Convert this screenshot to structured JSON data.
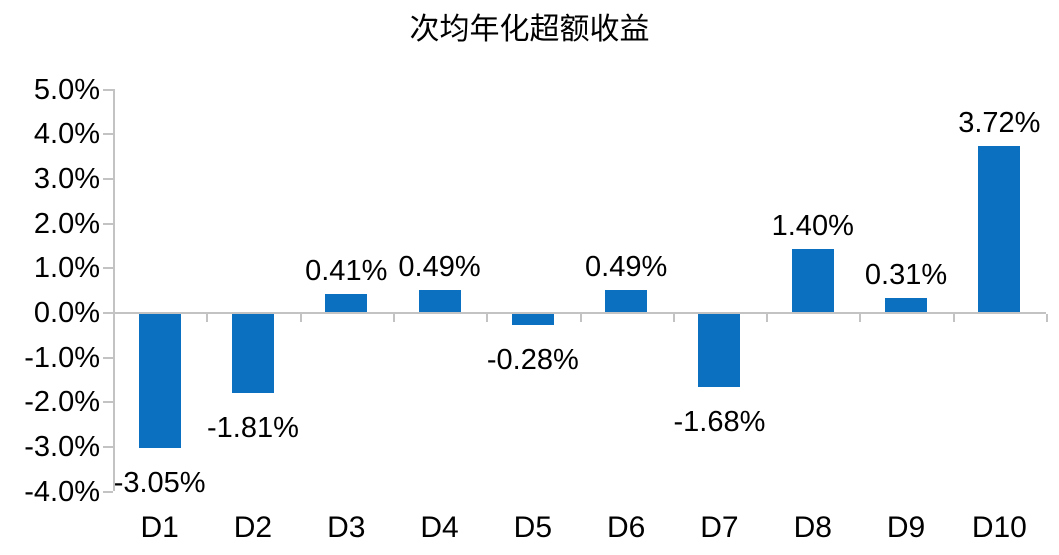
{
  "title": "次均年化超额收益",
  "chart_data": {
    "type": "bar",
    "title": "次均年化超额收益",
    "categories": [
      "D1",
      "D2",
      "D3",
      "D4",
      "D5",
      "D6",
      "D7",
      "D8",
      "D9",
      "D10"
    ],
    "values": [
      -3.05,
      -1.81,
      0.41,
      0.49,
      -0.28,
      0.49,
      -1.68,
      1.4,
      0.31,
      3.72
    ],
    "data_labels": [
      "-3.05%",
      "-1.81%",
      "0.41%",
      "0.49%",
      "-0.28%",
      "0.49%",
      "-1.68%",
      "1.40%",
      "0.31%",
      "3.72%"
    ],
    "ytick_values": [
      5,
      4,
      3,
      2,
      1,
      0,
      -1,
      -2,
      -3,
      -4
    ],
    "ytick_labels": [
      "5.0%",
      "4.0%",
      "3.0%",
      "2.0%",
      "1.0%",
      "0.0%",
      "-1.0%",
      "-2.0%",
      "-3.0%",
      "-4.0%"
    ],
    "ylim": [
      -4,
      5
    ],
    "xlabel": "",
    "ylabel": "",
    "grid": "none",
    "legend": "none",
    "bar_color": "#0B70BF",
    "axis_color": "#C3C3C3",
    "text_color": "#000000"
  }
}
